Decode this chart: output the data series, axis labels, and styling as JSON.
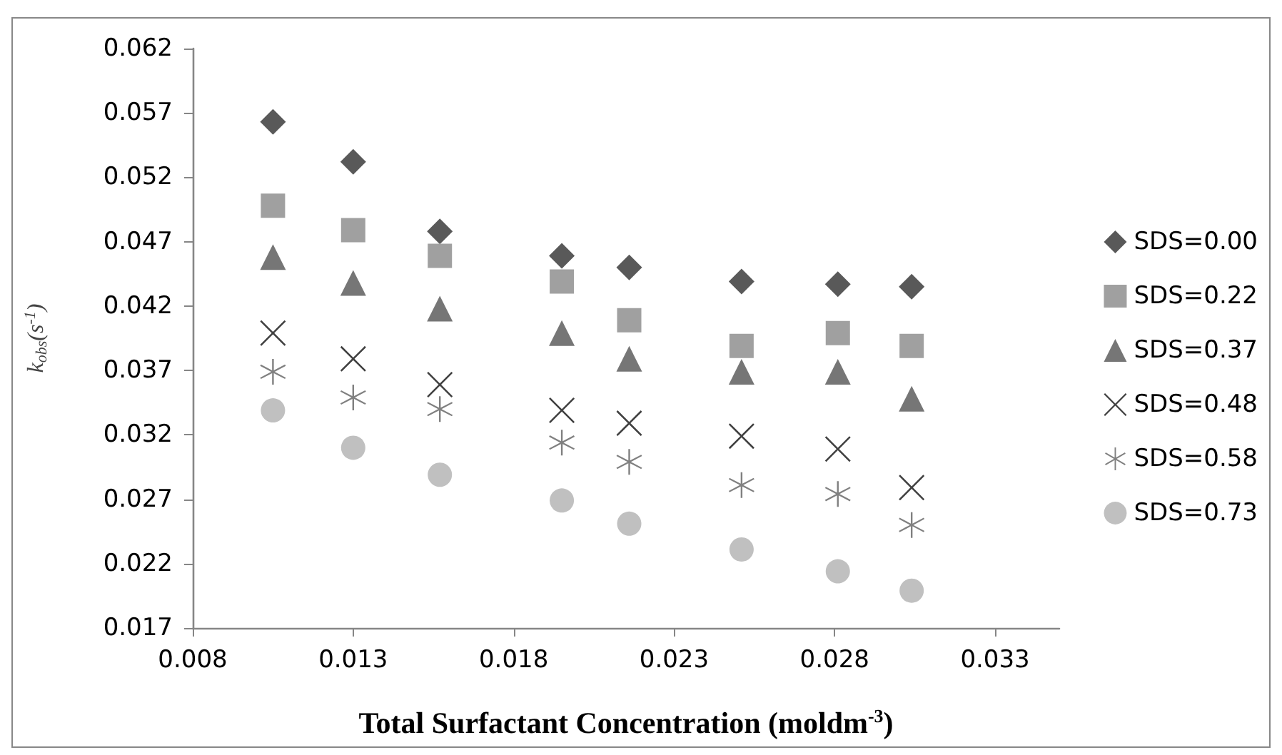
{
  "chart_data": {
    "type": "scatter",
    "xlabel": "Total Surfactant Concentration (moldm$^{-3}$)",
    "ylabel": "k$_{obs}$(s$^{-1}$)",
    "x": [
      0.0105,
      0.013,
      0.0157,
      0.0195,
      0.0216,
      0.0251,
      0.0281,
      0.0304
    ],
    "series": [
      {
        "name": "SDS=0.00",
        "color": "#595959",
        "marker": "diamond",
        "values": [
          0.0563,
          0.0532,
          0.0478,
          0.0459,
          0.045,
          0.0439,
          0.0437,
          0.0435
        ]
      },
      {
        "name": "SDS=0.22",
        "color": "#a0a0a0",
        "marker": "square",
        "values": [
          0.0498,
          0.0479,
          0.0459,
          0.0439,
          0.0409,
          0.0389,
          0.0399,
          0.0389
        ]
      },
      {
        "name": "SDS=0.37",
        "color": "#767676",
        "marker": "triangle",
        "values": [
          0.0458,
          0.0438,
          0.0418,
          0.0399,
          0.0379,
          0.0369,
          0.0369,
          0.0348
        ]
      },
      {
        "name": "SDS=0.48",
        "color": "#404040",
        "marker": "cross",
        "values": [
          0.0399,
          0.0379,
          0.0359,
          0.0339,
          0.0329,
          0.0319,
          0.0309,
          0.0279
        ]
      },
      {
        "name": "SDS=0.58",
        "color": "#808080",
        "marker": "star",
        "values": [
          0.0369,
          0.0349,
          0.034,
          0.0314,
          0.0299,
          0.0281,
          0.0274,
          0.025
        ]
      },
      {
        "name": "SDS=0.73",
        "color": "#c0c0c0",
        "marker": "circle",
        "values": [
          0.0339,
          0.031,
          0.0289,
          0.0269,
          0.0251,
          0.0231,
          0.0214,
          0.0199
        ]
      }
    ],
    "xlim": [
      0.008,
      0.035
    ],
    "xticks": [
      0.008,
      0.013,
      0.018,
      0.023,
      0.028,
      0.033
    ],
    "ylim": [
      0.017,
      0.062
    ],
    "yticks": [
      0.017,
      0.022,
      0.027,
      0.032,
      0.037,
      0.042,
      0.047,
      0.052,
      0.057,
      0.062
    ],
    "grid": false,
    "legend": "right"
  }
}
